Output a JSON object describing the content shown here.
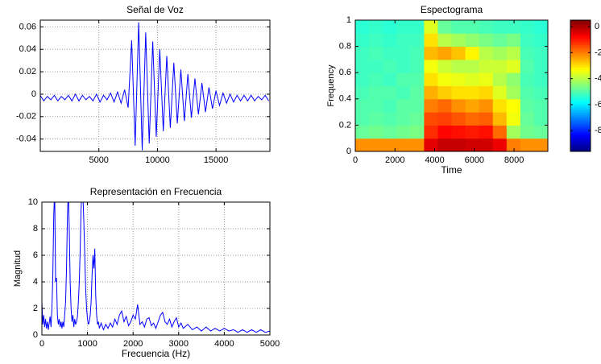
{
  "chart_data": [
    {
      "type": "line",
      "title": "Señal de Voz",
      "color": "#0000ff",
      "grid": true,
      "x": [
        0,
        300,
        600,
        900,
        1200,
        1500,
        1800,
        2100,
        2400,
        2700,
        3000,
        3300,
        3600,
        3900,
        4200,
        4500,
        4800,
        5100,
        5400,
        5700,
        6000,
        6300,
        6600,
        6900,
        7200,
        7500,
        7800,
        8100,
        8400,
        8700,
        9000,
        9300,
        9600,
        9900,
        10200,
        10500,
        10800,
        11100,
        11400,
        11700,
        12000,
        12300,
        12600,
        12900,
        13200,
        13500,
        13800,
        14100,
        14400,
        14700,
        15000,
        15300,
        15600,
        15900,
        16200,
        16500,
        16800,
        17100,
        17400,
        17700,
        18000,
        18300,
        18600,
        18900,
        19200,
        19500
      ],
      "values": [
        -0.001,
        -0.006,
        -0.002,
        -0.005,
        -0.001,
        -0.006,
        -0.002,
        -0.005,
        -0.001,
        -0.006,
        0,
        -0.006,
        -0.001,
        -0.005,
        -0.002,
        -0.006,
        0,
        -0.007,
        -0.001,
        -0.005,
        0.001,
        -0.007,
        0.002,
        -0.008,
        0.004,
        -0.012,
        0.048,
        -0.046,
        0.064,
        -0.05,
        0.055,
        -0.044,
        0.047,
        -0.038,
        0.04,
        -0.033,
        0.034,
        -0.03,
        0.028,
        -0.026,
        0.022,
        -0.024,
        0.018,
        -0.021,
        0.014,
        -0.018,
        0.01,
        -0.016,
        0.006,
        -0.013,
        0.003,
        -0.01,
        0.001,
        -0.008,
        0,
        -0.007,
        -0.001,
        -0.006,
        -0.001,
        -0.006,
        -0.001,
        -0.006,
        -0.002,
        -0.005,
        -0.001,
        -0.006
      ],
      "xlim": [
        0,
        19600
      ],
      "ylim": [
        -0.051,
        0.066
      ],
      "xticks": [
        5000,
        10000,
        15000
      ],
      "yticks": [
        -0.04,
        -0.02,
        0,
        0.02,
        0.04,
        0.06
      ]
    },
    {
      "type": "heatmap",
      "title": "Espectograma",
      "xlabel": "Time",
      "ylabel": "Frequency",
      "colormap": "jet",
      "xbins": [
        0,
        693,
        1386,
        2079,
        2772,
        3465,
        4158,
        4851,
        5544,
        6237,
        6930,
        7623,
        8316,
        9009,
        9700
      ],
      "ybins": [
        0,
        0.1,
        0.2,
        0.3,
        0.4,
        0.5,
        0.6,
        0.7,
        0.8,
        0.9,
        1
      ],
      "z": [
        [
          -22,
          -22,
          -22,
          -22,
          -22,
          -5,
          -2,
          -2,
          -3,
          -3,
          -6,
          -20,
          -22,
          -22
        ],
        [
          -48,
          -47,
          -48,
          -47,
          -46,
          -12,
          -8,
          -9,
          -10,
          -9,
          -18,
          -42,
          -47,
          -48
        ],
        [
          -50,
          -49,
          -50,
          -49,
          -48,
          -15,
          -14,
          -16,
          -18,
          -17,
          -26,
          -34,
          -48,
          -50
        ],
        [
          -50,
          -50,
          -51,
          -49,
          -49,
          -20,
          -18,
          -22,
          -24,
          -22,
          -30,
          -33,
          -49,
          -50
        ],
        [
          -51,
          -50,
          -50,
          -51,
          -49,
          -25,
          -28,
          -30,
          -30,
          -29,
          -36,
          -42,
          -50,
          -51
        ],
        [
          -52,
          -51,
          -52,
          -50,
          -50,
          -30,
          -34,
          -35,
          -36,
          -35,
          -40,
          -44,
          -51,
          -52
        ],
        [
          -52,
          -52,
          -51,
          -52,
          -51,
          -34,
          -38,
          -40,
          -40,
          -38,
          -38,
          -36,
          -50,
          -52
        ],
        [
          -52,
          -51,
          -52,
          -52,
          -51,
          -26,
          -24,
          -27,
          -32,
          -40,
          -42,
          -40,
          -51,
          -52
        ],
        [
          -53,
          -52,
          -53,
          -52,
          -52,
          -30,
          -40,
          -42,
          -44,
          -46,
          -48,
          -46,
          -52,
          -53
        ],
        [
          -54,
          -53,
          -54,
          -53,
          -53,
          -36,
          -48,
          -50,
          -50,
          -51,
          -52,
          -52,
          -53,
          -54
        ]
      ],
      "xlim": [
        0,
        9700
      ],
      "ylim": [
        0,
        1
      ],
      "xticks": [
        0,
        2000,
        4000,
        6000,
        8000
      ],
      "yticks": [
        0,
        0.2,
        0.4,
        0.6,
        0.8,
        1
      ],
      "clim": [
        -96,
        5
      ],
      "cticks": [
        -80,
        -60,
        -40,
        -20,
        0
      ]
    },
    {
      "type": "line",
      "title": "Representación en Frecuencia",
      "xlabel": "Frecuencia (Hz)",
      "ylabel": "Magnitud",
      "color": "#0000ff",
      "grid": true,
      "x": [
        0,
        20,
        40,
        60,
        80,
        100,
        120,
        140,
        160,
        180,
        200,
        220,
        240,
        260,
        280,
        300,
        320,
        340,
        360,
        380,
        400,
        420,
        440,
        460,
        480,
        500,
        520,
        540,
        560,
        580,
        600,
        620,
        640,
        660,
        680,
        700,
        720,
        740,
        760,
        780,
        800,
        820,
        840,
        860,
        880,
        900,
        920,
        940,
        960,
        980,
        1000,
        1020,
        1040,
        1060,
        1080,
        1100,
        1120,
        1140,
        1160,
        1180,
        1200,
        1220,
        1240,
        1260,
        1300,
        1350,
        1400,
        1450,
        1500,
        1550,
        1600,
        1650,
        1700,
        1750,
        1800,
        1850,
        1900,
        1950,
        2000,
        2050,
        2100,
        2150,
        2200,
        2250,
        2300,
        2350,
        2400,
        2450,
        2500,
        2550,
        2600,
        2650,
        2700,
        2750,
        2800,
        2850,
        2900,
        2950,
        3000,
        3050,
        3100,
        3200,
        3300,
        3400,
        3500,
        3600,
        3700,
        3800,
        3900,
        4000,
        4100,
        4200,
        4300,
        4400,
        4500,
        4600,
        4700,
        4800,
        4900,
        5000
      ],
      "values": [
        2.5,
        0.8,
        1.5,
        0.6,
        1.2,
        0.5,
        1.0,
        0.4,
        0.9,
        1.4,
        0.6,
        2.0,
        4.5,
        9.0,
        11,
        4.0,
        4.3,
        1.5,
        0.8,
        1.2,
        0.6,
        1.0,
        0.5,
        1.0,
        0.6,
        1.5,
        2.5,
        5.0,
        9.0,
        11,
        8.0,
        4.0,
        2.0,
        1.0,
        1.5,
        0.6,
        1.2,
        0.8,
        1.0,
        1.4,
        2.5,
        4.0,
        6.5,
        9.5,
        11,
        10.5,
        8.5,
        6.0,
        3.5,
        2.0,
        1.2,
        0.8,
        1.0,
        1.5,
        2.5,
        4.5,
        6.0,
        5.0,
        6.5,
        3.0,
        1.5,
        0.8,
        1.0,
        0.5,
        0.9,
        0.4,
        0.8,
        0.5,
        0.9,
        0.6,
        1.2,
        0.8,
        1.5,
        1.8,
        1.0,
        1.4,
        0.7,
        1.0,
        1.5,
        1.2,
        2.3,
        0.8,
        1.0,
        0.6,
        1.2,
        1.3,
        0.7,
        0.9,
        0.5,
        1.0,
        1.5,
        1.7,
        1.0,
        0.8,
        1.2,
        0.6,
        1.0,
        1.3,
        0.6,
        0.9,
        0.5,
        0.8,
        0.4,
        0.6,
        0.3,
        0.6,
        0.3,
        0.5,
        0.3,
        0.5,
        0.3,
        0.4,
        0.2,
        0.4,
        0.2,
        0.4,
        0.2,
        0.4,
        0.2,
        0.3
      ],
      "xlim": [
        0,
        5000
      ],
      "ylim": [
        0,
        10
      ],
      "xticks": [
        0,
        1000,
        2000,
        3000,
        4000,
        5000
      ],
      "yticks": [
        0,
        2,
        4,
        6,
        8,
        10
      ]
    }
  ]
}
